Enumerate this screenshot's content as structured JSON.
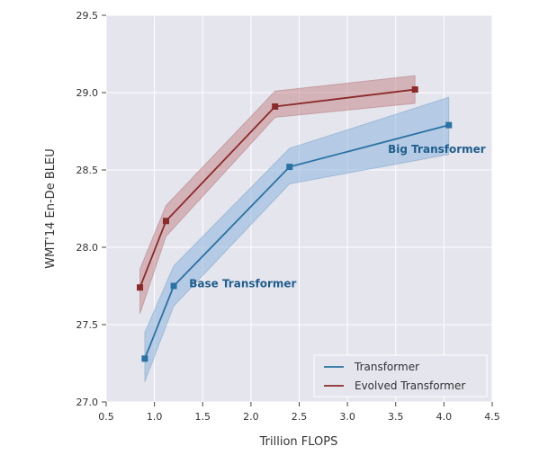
{
  "chart_data": {
    "type": "line",
    "title": "",
    "xlabel": "Trillion FLOPS",
    "ylabel": "WMT'14 En-De BLEU",
    "xlim": [
      0.5,
      4.5
    ],
    "ylim": [
      27.0,
      29.5
    ],
    "xticks": [
      "0.5",
      "1.0",
      "1.5",
      "2.0",
      "2.5",
      "3.0",
      "3.5",
      "4.0",
      "4.5"
    ],
    "yticks": [
      "27.0",
      "27.5",
      "28.0",
      "28.5",
      "29.0",
      "29.5"
    ],
    "grid": true,
    "legend_position": "bottom-right",
    "series": [
      {
        "name": "Transformer",
        "color": "#2a72a3",
        "band_color": "#8eb4dc",
        "x": [
          0.9,
          1.2,
          2.4,
          4.05
        ],
        "y": [
          27.28,
          27.75,
          28.52,
          28.79
        ],
        "y_low": [
          27.13,
          27.62,
          28.41,
          28.6
        ],
        "y_high": [
          27.45,
          27.88,
          28.64,
          28.97
        ]
      },
      {
        "name": "Evolved Transformer",
        "color": "#8c2a2a",
        "band_color": "#c58a8c",
        "x": [
          0.85,
          1.12,
          2.25,
          3.7
        ],
        "y": [
          27.74,
          28.17,
          28.91,
          29.02
        ],
        "y_low": [
          27.57,
          28.07,
          28.84,
          28.93
        ],
        "y_high": [
          27.86,
          28.27,
          29.01,
          29.11
        ]
      }
    ],
    "annotations": [
      {
        "text": "Big Transformer",
        "x": 3.42,
        "y": 28.61,
        "color": "#1f5e8c"
      },
      {
        "text": "Base Transformer",
        "x": 1.36,
        "y": 27.74,
        "color": "#1f5e8c"
      }
    ]
  }
}
